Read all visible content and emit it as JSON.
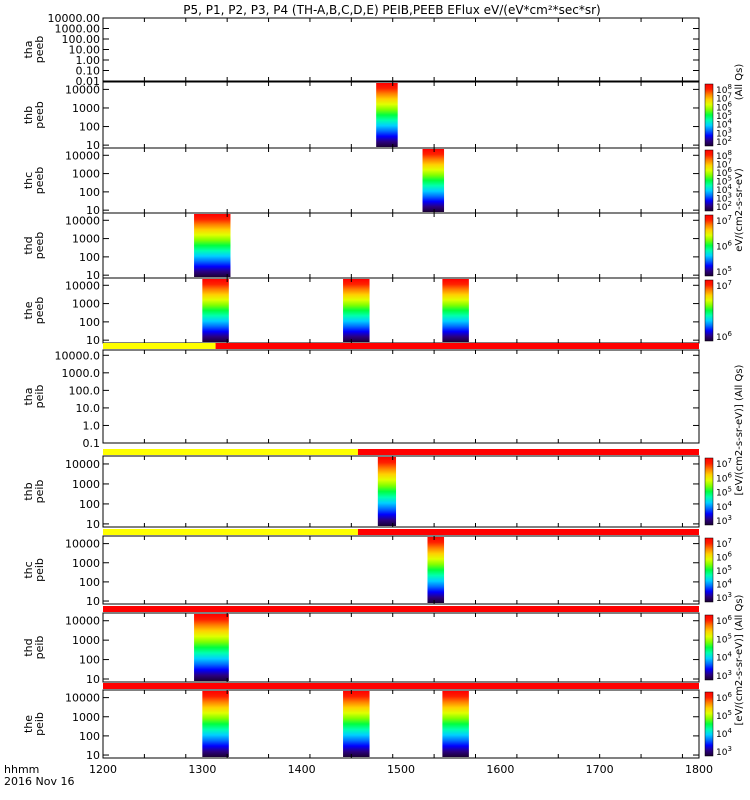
{
  "title": "P5, P1, P2, P3, P4 (TH-A,B,C,D,E) PEIB,PEEB EFlux eV/(eV*cm²*sec*sr)",
  "time_axis": {
    "label_line1": "hhmm",
    "label_line2": "2016 Nov 16",
    "ticks": [
      "1200",
      "1300",
      "1400",
      "1500",
      "1600",
      "1700",
      "1800"
    ]
  },
  "colors": {
    "flag_yellow": "#ffff00",
    "flag_red": "#ff0000",
    "colorbar": [
      "#1a0033",
      "#2a0080",
      "#0000ff",
      "#0070ff",
      "#00d0ff",
      "#00ffb0",
      "#00ff40",
      "#80ff00",
      "#e0ff00",
      "#ffd000",
      "#ff8000",
      "#ff2000",
      "#ff0000"
    ]
  },
  "colorbar_labels": {
    "right_top": "(All Qs)",
    "right_peeb": "eV/(cm2-s-sr-eV)",
    "right_mid": "[eV/(cm2-s-sr-eV)] (All Qs)",
    "right_bottom": "[eV/(cm2-s-sr-eV)] (All Qs)"
  },
  "chart_data": [
    {
      "type": "heatmap",
      "probe": "tha",
      "instrument": "peeb",
      "ylabel": "tha\npeeb",
      "scale": "log",
      "y_ticks": [
        "10000.00",
        "1000.00",
        "100.00",
        "10.00",
        "1.00",
        "0.10",
        "0.01"
      ],
      "ylim": [
        0.01,
        10000
      ],
      "intervals": [],
      "colorbar_ticks": []
    },
    {
      "type": "heatmap",
      "probe": "thb",
      "instrument": "peeb",
      "ylabel": "thb\npeeb",
      "scale": "log",
      "y_ticks": [
        "10000",
        "1000",
        "100",
        "10"
      ],
      "ylim": [
        7,
        25000
      ],
      "intervals": [
        {
          "start": "14:45",
          "end": "14:58"
        }
      ],
      "colorbar_ticks": [
        "10^8",
        "10^7",
        "10^6",
        "10^5",
        "10^4",
        "10^3",
        "10^2"
      ]
    },
    {
      "type": "heatmap",
      "probe": "thc",
      "instrument": "peeb",
      "ylabel": "thc\npeeb",
      "scale": "log",
      "y_ticks": [
        "10000",
        "1000",
        "100",
        "10"
      ],
      "ylim": [
        7,
        25000
      ],
      "intervals": [
        {
          "start": "15:13",
          "end": "15:26"
        }
      ],
      "colorbar_ticks": [
        "10^8",
        "10^7",
        "10^6",
        "10^5",
        "10^4",
        "10^3",
        "10^2"
      ]
    },
    {
      "type": "heatmap",
      "probe": "thd",
      "instrument": "peeb",
      "ylabel": "thd\npeeb",
      "scale": "log",
      "y_ticks": [
        "10000",
        "1000",
        "100",
        "10"
      ],
      "ylim": [
        7,
        25000
      ],
      "intervals": [
        {
          "start": "12:55",
          "end": "13:17"
        }
      ],
      "colorbar_ticks": [
        "10^7",
        "10^6",
        "10^5"
      ]
    },
    {
      "type": "heatmap",
      "probe": "the",
      "instrument": "peeb",
      "ylabel": "the\npeeb",
      "scale": "log",
      "y_ticks": [
        "10000",
        "1000",
        "100",
        "10"
      ],
      "ylim": [
        7,
        25000
      ],
      "intervals": [
        {
          "start": "13:00",
          "end": "13:16"
        },
        {
          "start": "14:25",
          "end": "14:41"
        },
        {
          "start": "15:25",
          "end": "15:41"
        }
      ],
      "colorbar_ticks": [
        "10^7",
        "10^6"
      ]
    },
    {
      "type": "heatmap",
      "probe": "tha",
      "instrument": "peib",
      "ylabel": "tha\npeib",
      "scale": "log",
      "y_ticks": [
        "10000.0",
        "1000.0",
        "100.0",
        "10.0",
        "1.0",
        "0.1"
      ],
      "ylim": [
        0.1,
        20000
      ],
      "flag": [
        {
          "start": "12:00",
          "end": "13:08",
          "color": "yellow"
        },
        {
          "start": "13:08",
          "end": "18:00",
          "color": "red"
        }
      ],
      "intervals": [],
      "colorbar_ticks": []
    },
    {
      "type": "heatmap",
      "probe": "thb",
      "instrument": "peib",
      "ylabel": "thb\npeib",
      "scale": "log",
      "y_ticks": [
        "10000",
        "1000",
        "100",
        "10"
      ],
      "ylim": [
        7,
        25000
      ],
      "flag": [
        {
          "start": "12:00",
          "end": "14:34",
          "color": "yellow"
        },
        {
          "start": "14:34",
          "end": "18:00",
          "color": "red"
        }
      ],
      "intervals": [
        {
          "start": "14:46",
          "end": "14:57"
        }
      ],
      "colorbar_ticks": [
        "10^7",
        "10^6",
        "10^5",
        "10^4",
        "10^3"
      ]
    },
    {
      "type": "heatmap",
      "probe": "thc",
      "instrument": "peib",
      "ylabel": "thc\npeib",
      "scale": "log",
      "y_ticks": [
        "10000",
        "1000",
        "100",
        "10"
      ],
      "ylim": [
        7,
        25000
      ],
      "flag": [
        {
          "start": "12:00",
          "end": "14:34",
          "color": "yellow"
        },
        {
          "start": "14:34",
          "end": "18:00",
          "color": "red"
        }
      ],
      "intervals": [
        {
          "start": "15:16",
          "end": "15:26"
        }
      ],
      "colorbar_ticks": [
        "10^7",
        "10^6",
        "10^5",
        "10^4",
        "10^3"
      ]
    },
    {
      "type": "heatmap",
      "probe": "thd",
      "instrument": "peib",
      "ylabel": "thd\npeib",
      "scale": "log",
      "y_ticks": [
        "10000",
        "1000",
        "100",
        "10"
      ],
      "ylim": [
        7,
        25000
      ],
      "flag": [
        {
          "start": "12:00",
          "end": "18:00",
          "color": "red"
        }
      ],
      "intervals": [
        {
          "start": "12:55",
          "end": "13:16"
        }
      ],
      "colorbar_ticks": [
        "10^6",
        "10^5",
        "10^4",
        "10^3"
      ]
    },
    {
      "type": "heatmap",
      "probe": "the",
      "instrument": "peib",
      "ylabel": "the\npeib",
      "scale": "log",
      "y_ticks": [
        "10000",
        "1000",
        "100",
        "10"
      ],
      "ylim": [
        7,
        25000
      ],
      "flag": [
        {
          "start": "12:00",
          "end": "18:00",
          "color": "red"
        }
      ],
      "intervals": [
        {
          "start": "13:00",
          "end": "13:16"
        },
        {
          "start": "14:25",
          "end": "14:41"
        },
        {
          "start": "15:25",
          "end": "15:41"
        }
      ],
      "colorbar_ticks": [
        "10^6",
        "10^5",
        "10^4",
        "10^3"
      ]
    }
  ]
}
